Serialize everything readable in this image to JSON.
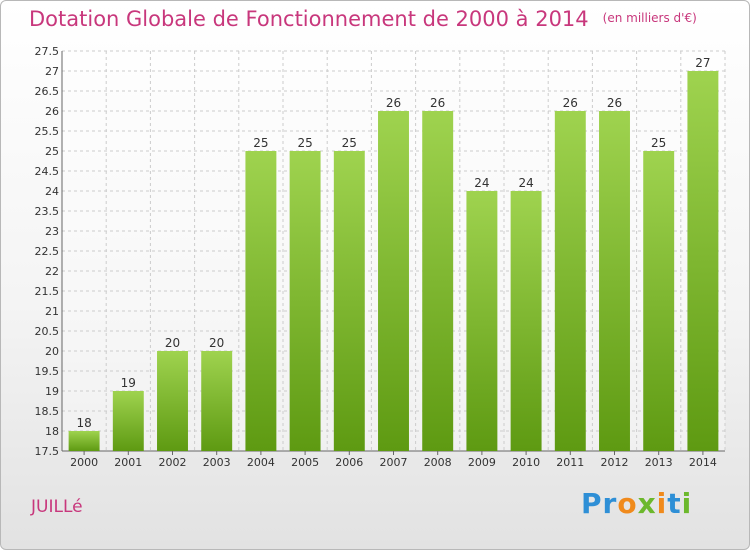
{
  "header": {
    "title": "Dotation Globale de Fonctionnement de 2000 à 2014",
    "unit": "(en milliers d'€)"
  },
  "footer": {
    "commune": "JUILLé",
    "brand": "Proxiti"
  },
  "colors": {
    "bar_light": "#9fd34f",
    "bar_dark": "#5e9a12",
    "title": "#c8377c",
    "grid": "#cccccc"
  },
  "chart_data": {
    "type": "bar",
    "title": "Dotation Globale de Fonctionnement de 2000 à 2014",
    "subtitle": "(en milliers d'€)",
    "categories": [
      "2000",
      "2001",
      "2002",
      "2003",
      "2004",
      "2005",
      "2006",
      "2007",
      "2008",
      "2009",
      "2010",
      "2011",
      "2012",
      "2013",
      "2014"
    ],
    "values": [
      18,
      19,
      20,
      20,
      25,
      25,
      25,
      26,
      26,
      24,
      24,
      26,
      26,
      25,
      27
    ],
    "ylim": [
      17.5,
      27.5
    ],
    "yticks": [
      "17.5",
      "18",
      "18.5",
      "19",
      "19.5",
      "20",
      "20.5",
      "21",
      "21.5",
      "22",
      "22.5",
      "23",
      "23.5",
      "24",
      "24.5",
      "25",
      "25.5",
      "26",
      "26.5",
      "27",
      "27.5"
    ],
    "grid": true,
    "legend": "none",
    "xlabel": "",
    "ylabel": ""
  }
}
